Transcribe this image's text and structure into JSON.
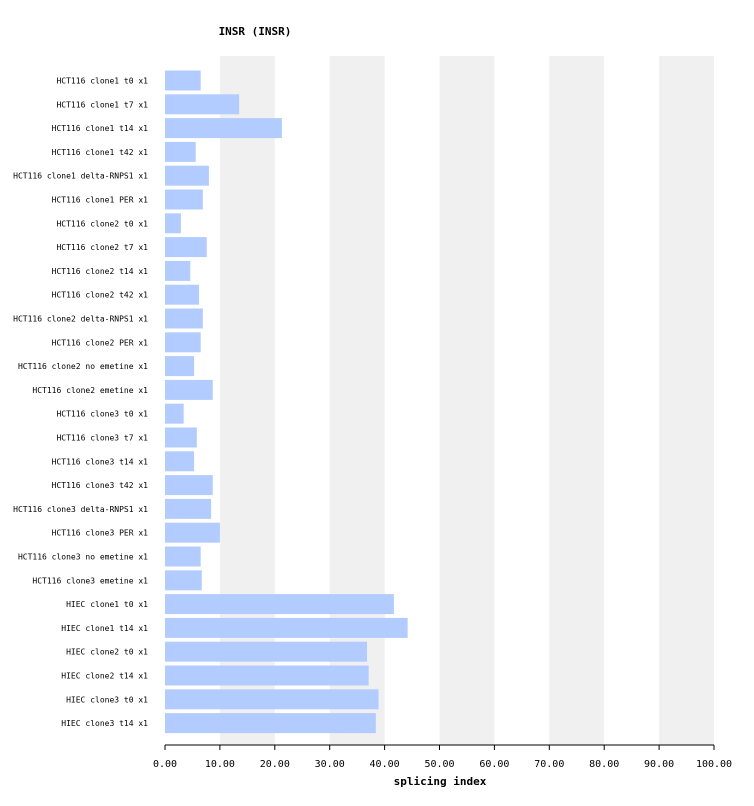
{
  "chart_data": {
    "type": "bar",
    "orientation": "horizontal",
    "title": "INSR (INSR)",
    "xlabel": "splicing index",
    "ylabel": "",
    "xlim": [
      0,
      100
    ],
    "x_ticks": [
      "0.00",
      "10.00",
      "20.00",
      "30.00",
      "40.00",
      "50.00",
      "60.00",
      "70.00",
      "80.00",
      "90.00",
      "100.00"
    ],
    "grid": "alternating vertical bands",
    "colors": {
      "bar": "#b3ccff",
      "band": "#f0f0f0",
      "axis": "#000000"
    },
    "categories": [
      "HCT116 clone1 t0 x1",
      "HCT116 clone1 t7 x1",
      "HCT116 clone1 t14 x1",
      "HCT116 clone1 t42 x1",
      "HCT116 clone1 delta-RNPS1 x1",
      "HCT116 clone1 PER x1",
      "HCT116 clone2 t0 x1",
      "HCT116 clone2 t7 x1",
      "HCT116 clone2 t14 x1",
      "HCT116 clone2 t42 x1",
      "HCT116 clone2 delta-RNPS1 x1",
      "HCT116 clone2 PER x1",
      "HCT116 clone2 no emetine x1",
      "HCT116 clone2 emetine x1",
      "HCT116 clone3 t0 x1",
      "HCT116 clone3 t7 x1",
      "HCT116 clone3 t14 x1",
      "HCT116 clone3 t42 x1",
      "HCT116 clone3 delta-RNPS1 x1",
      "HCT116 clone3 PER x1",
      "HCT116 clone3 no emetine x1",
      "HCT116 clone3 emetine x1",
      "HIEC clone1 t0 x1",
      "HIEC clone1 t14 x1",
      "HIEC clone2 t0 x1",
      "HIEC clone2 t14 x1",
      "HIEC clone3 t0 x1",
      "HIEC clone3 t14 x1"
    ],
    "values": [
      6.5,
      13.5,
      21.3,
      5.6,
      8.0,
      6.9,
      2.9,
      7.6,
      4.6,
      6.2,
      6.9,
      6.5,
      5.3,
      8.7,
      3.4,
      5.8,
      5.3,
      8.7,
      8.4,
      10.0,
      6.5,
      6.7,
      41.7,
      44.2,
      36.8,
      37.1,
      38.9,
      38.4
    ]
  }
}
